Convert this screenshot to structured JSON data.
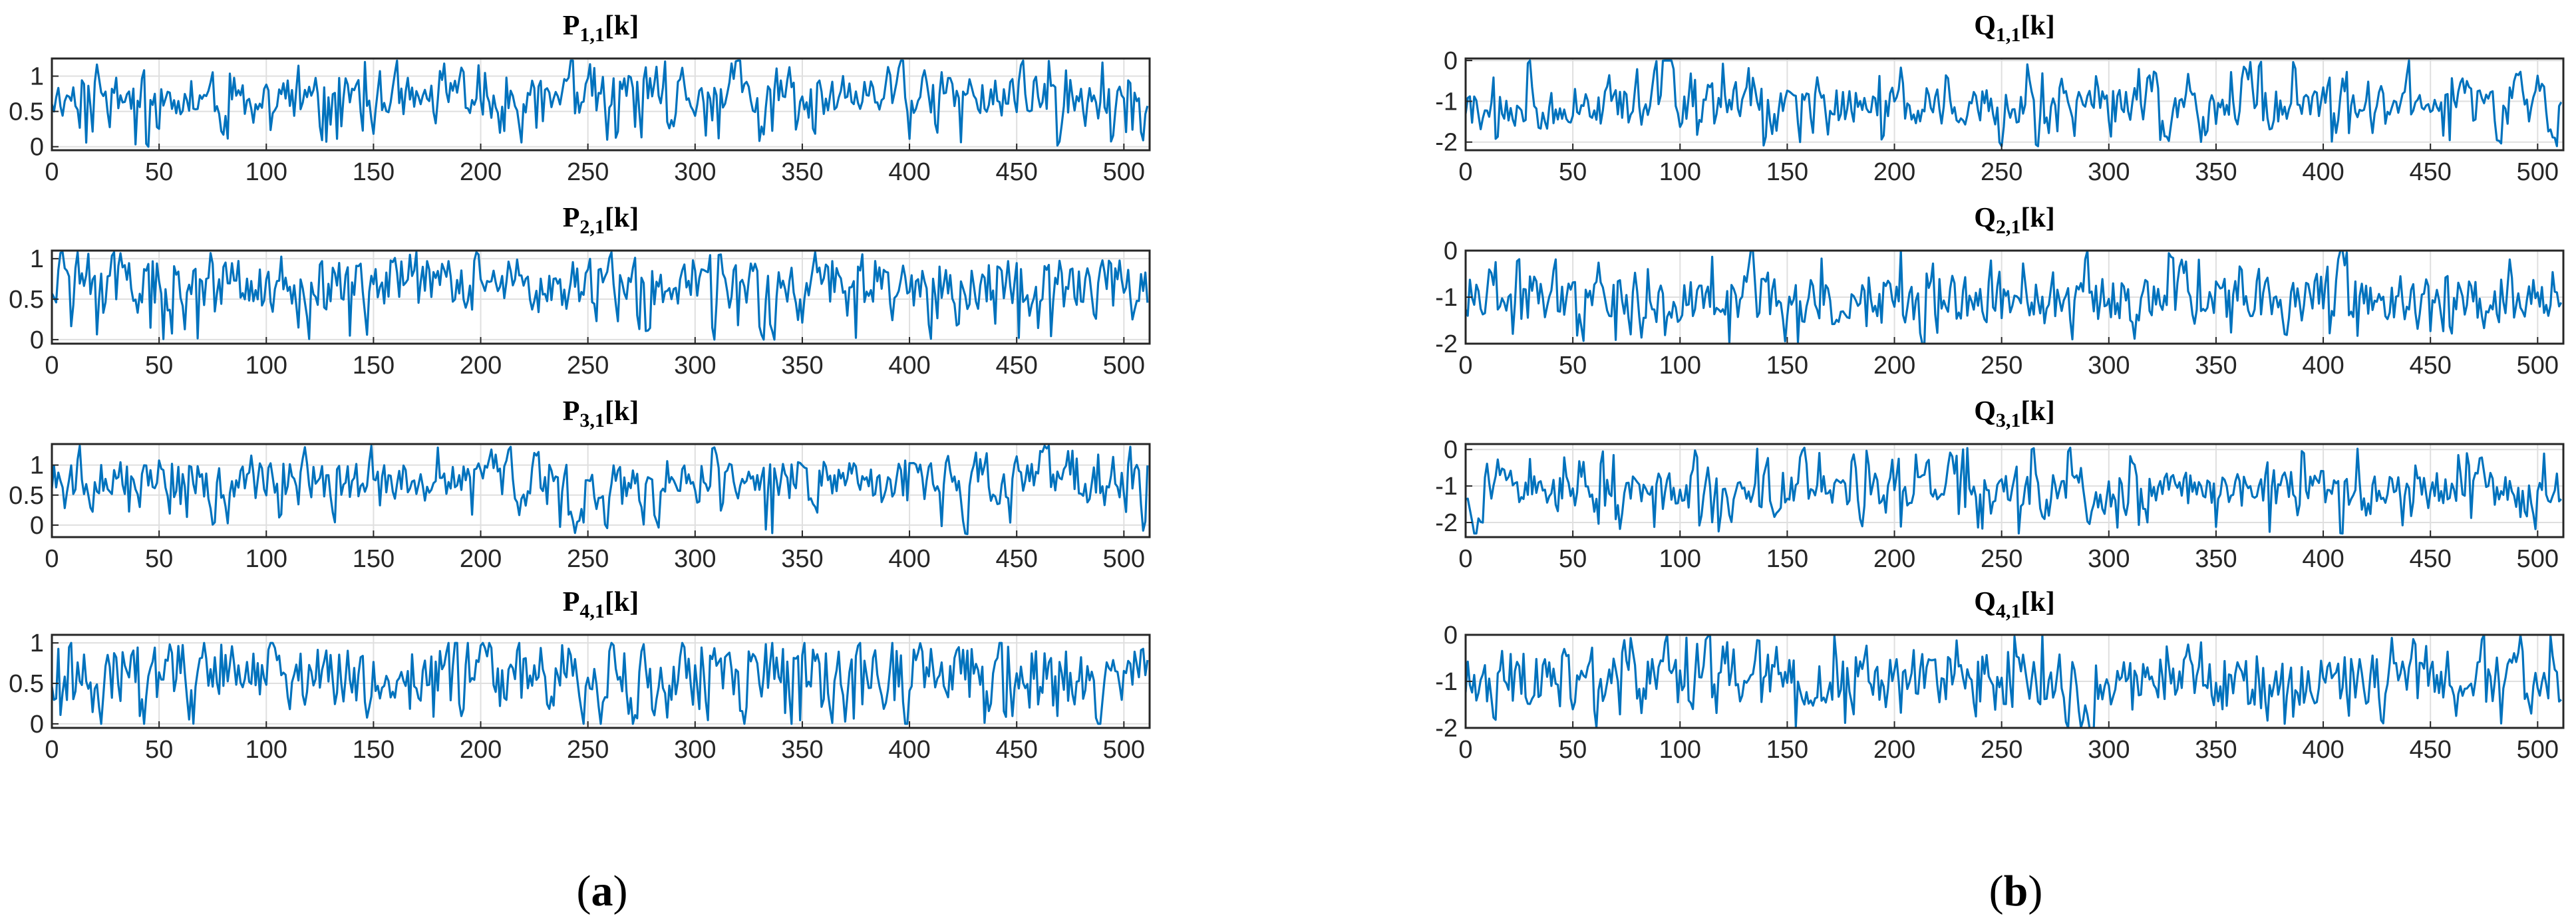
{
  "figure": {
    "captions": [
      "a",
      "b"
    ]
  },
  "colors": {
    "series": "#0072BD",
    "axes": "#262626",
    "grid": "#dfdfdf"
  },
  "chart_data": [
    {
      "type": "line",
      "title": {
        "base": "P",
        "sub": "1,1",
        "suffix": "[k]"
      },
      "xlim": [
        0,
        512
      ],
      "ylim": [
        -0.05,
        1.25
      ],
      "xticks": [
        0,
        50,
        100,
        150,
        200,
        250,
        300,
        350,
        400,
        450,
        500
      ],
      "yticks": [
        0,
        0.5,
        1
      ],
      "ytick_labels": [
        "0",
        "0.5",
        "1"
      ],
      "grid": true,
      "series": [
        {
          "length": 512,
          "seed": 11,
          "range": [
            0,
            1.22
          ],
          "center": 0.72,
          "spread": 0.26
        }
      ]
    },
    {
      "type": "line",
      "title": {
        "base": "P",
        "sub": "2,1",
        "suffix": "[k]"
      },
      "xlim": [
        0,
        512
      ],
      "ylim": [
        -0.05,
        1.1
      ],
      "xticks": [
        0,
        50,
        100,
        150,
        200,
        250,
        300,
        350,
        400,
        450,
        500
      ],
      "yticks": [
        0,
        0.5,
        1
      ],
      "ytick_labels": [
        "0",
        "0.5",
        "1"
      ],
      "grid": true,
      "series": [
        {
          "length": 512,
          "seed": 22,
          "range": [
            0,
            1.08
          ],
          "center": 0.7,
          "spread": 0.28
        }
      ]
    },
    {
      "type": "line",
      "title": {
        "base": "P",
        "sub": "3,1",
        "suffix": "[k]"
      },
      "xlim": [
        0,
        512
      ],
      "ylim": [
        -0.2,
        1.35
      ],
      "xticks": [
        0,
        50,
        100,
        150,
        200,
        250,
        300,
        350,
        400,
        450,
        500
      ],
      "yticks": [
        0,
        0.5,
        1
      ],
      "ytick_labels": [
        "0",
        "0.5",
        "1"
      ],
      "grid": true,
      "series": [
        {
          "length": 512,
          "seed": 33,
          "range": [
            -0.15,
            1.32
          ],
          "center": 0.75,
          "spread": 0.3
        }
      ]
    },
    {
      "type": "line",
      "title": {
        "base": "P",
        "sub": "4,1",
        "suffix": "[k]"
      },
      "xlim": [
        0,
        512
      ],
      "ylim": [
        -0.05,
        1.1
      ],
      "xticks": [
        0,
        50,
        100,
        150,
        200,
        250,
        300,
        350,
        400,
        450,
        500
      ],
      "yticks": [
        0,
        0.5,
        1
      ],
      "ytick_labels": [
        "0",
        "0.5",
        "1"
      ],
      "grid": true,
      "series": [
        {
          "length": 512,
          "seed": 44,
          "range": [
            0,
            1.0
          ],
          "center": 0.62,
          "spread": 0.34
        }
      ]
    },
    {
      "type": "line",
      "title": {
        "base": "Q",
        "sub": "1,1",
        "suffix": "[k]"
      },
      "xlim": [
        0,
        512
      ],
      "ylim": [
        -2.2,
        0.05
      ],
      "xticks": [
        0,
        50,
        100,
        150,
        200,
        250,
        300,
        350,
        400,
        450,
        500
      ],
      "yticks": [
        -2,
        -1,
        0
      ],
      "ytick_labels": [
        "-2",
        "-1",
        "0"
      ],
      "grid": true,
      "series": [
        {
          "length": 512,
          "seed": 55,
          "range": [
            -2.1,
            0.0
          ],
          "center": -1.1,
          "spread": 0.45
        }
      ]
    },
    {
      "type": "line",
      "title": {
        "base": "Q",
        "sub": "2,1",
        "suffix": "[k]"
      },
      "xlim": [
        0,
        512
      ],
      "ylim": [
        -2.0,
        0.0
      ],
      "xticks": [
        0,
        50,
        100,
        150,
        200,
        250,
        300,
        350,
        400,
        450,
        500
      ],
      "yticks": [
        -2,
        -1,
        0
      ],
      "ytick_labels": [
        "-2",
        "-1",
        "0"
      ],
      "grid": true,
      "series": [
        {
          "length": 512,
          "seed": 66,
          "range": [
            -2.0,
            0.0
          ],
          "center": -1.05,
          "spread": 0.45
        }
      ]
    },
    {
      "type": "line",
      "title": {
        "base": "Q",
        "sub": "3,1",
        "suffix": "[k]"
      },
      "xlim": [
        0,
        512
      ],
      "ylim": [
        -2.4,
        0.15
      ],
      "xticks": [
        0,
        50,
        100,
        150,
        200,
        250,
        300,
        350,
        400,
        450,
        500
      ],
      "yticks": [
        -2,
        -1,
        0
      ],
      "ytick_labels": [
        "-2",
        "-1",
        "0"
      ],
      "grid": true,
      "series": [
        {
          "length": 512,
          "seed": 77,
          "range": [
            -2.3,
            0.05
          ],
          "center": -1.15,
          "spread": 0.45
        }
      ]
    },
    {
      "type": "line",
      "title": {
        "base": "Q",
        "sub": "4,1",
        "suffix": "[k]"
      },
      "xlim": [
        0,
        512
      ],
      "ylim": [
        -2.0,
        0.0
      ],
      "xticks": [
        0,
        50,
        100,
        150,
        200,
        250,
        300,
        350,
        400,
        450,
        500
      ],
      "yticks": [
        -2,
        -1,
        0
      ],
      "ytick_labels": [
        "-2",
        "-1",
        "0"
      ],
      "grid": true,
      "series": [
        {
          "length": 512,
          "seed": 88,
          "range": [
            -2.0,
            0.0
          ],
          "center": -1.0,
          "spread": 0.5
        }
      ]
    }
  ]
}
